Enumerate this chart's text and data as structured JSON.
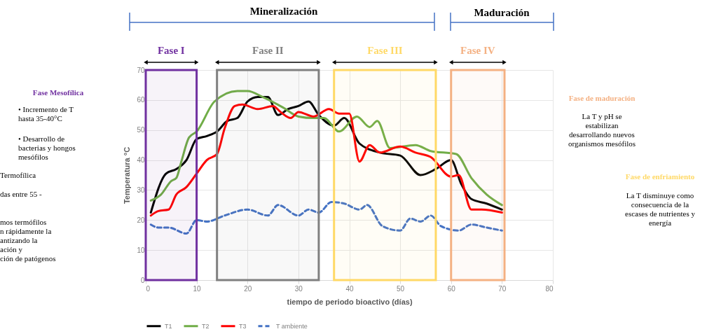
{
  "chart_data": {
    "type": "line",
    "xlabel": "tiempo de periodo bioactivo (días)",
    "ylabel": "Temperatura °C",
    "xlim": [
      0,
      80
    ],
    "xticks": [
      0,
      10,
      20,
      30,
      40,
      50,
      60,
      70,
      80
    ],
    "ylim": [
      0,
      70
    ],
    "yticks": [
      0,
      10,
      20,
      30,
      40,
      50,
      60,
      70
    ],
    "grid": true,
    "legend": "bottom",
    "marker": "none",
    "series": [
      {
        "name": "T1",
        "color": "#000000",
        "line_style": "solid",
        "x": [
          1,
          4,
          6,
          8,
          10,
          12,
          14,
          16,
          18,
          20,
          22,
          24,
          26,
          28,
          30,
          32,
          34,
          37,
          39,
          42,
          46,
          50,
          54,
          57,
          60,
          62,
          64,
          67,
          70
        ],
        "values": [
          22.5,
          35.5,
          37,
          40,
          47,
          48,
          49.5,
          53,
          54,
          59.5,
          61,
          61,
          55,
          57,
          58,
          59.5,
          55,
          51.5,
          54,
          45.5,
          42.5,
          41.5,
          35,
          37,
          40,
          32,
          27,
          25.5,
          23.5
        ]
      },
      {
        "name": "T2",
        "color": "#70ad47",
        "line_style": "solid",
        "x": [
          1,
          3,
          5,
          6,
          7,
          8.5,
          10,
          13.5,
          18,
          20,
          23,
          27,
          30,
          33,
          35,
          38,
          41.5,
          44,
          45.5,
          48,
          53,
          56,
          61,
          64,
          67,
          70
        ],
        "values": [
          26.5,
          28.5,
          33,
          34,
          39.5,
          47.5,
          49.5,
          59.5,
          63,
          63,
          61,
          57.5,
          54.5,
          54,
          54,
          49.5,
          54.5,
          51,
          53,
          44,
          45,
          43,
          42,
          34,
          28.5,
          25
        ]
      },
      {
        "name": "T3",
        "color": "#ff0000",
        "line_style": "solid",
        "x": [
          1,
          2.5,
          4.5,
          6,
          8,
          10,
          12,
          14,
          15.5,
          17.5,
          19,
          22,
          25,
          26.5,
          28.5,
          30,
          33,
          36,
          38,
          40,
          42,
          44,
          46,
          50,
          53,
          56,
          60,
          61.5,
          64,
          66,
          70
        ],
        "values": [
          21.5,
          23,
          23.5,
          28.5,
          31,
          35.5,
          40,
          42,
          50.5,
          58,
          58.5,
          57,
          58,
          56,
          54,
          56,
          54.5,
          57,
          55.5,
          55.5,
          39.5,
          45,
          42.5,
          44.5,
          42.5,
          41,
          34.5,
          35,
          23.5,
          23.5,
          22.5
        ]
      },
      {
        "name": "T ambiente",
        "color": "#4472c4",
        "line_style": "dashed",
        "x": [
          1,
          2.5,
          4.5,
          8,
          10,
          12,
          15.5,
          20,
          24,
          26,
          30,
          32,
          34,
          36.5,
          39,
          42,
          43.5,
          46.5,
          50,
          52,
          54,
          56,
          58,
          61.5,
          64,
          67,
          70
        ],
        "values": [
          18.5,
          17.5,
          17.5,
          15.5,
          20,
          19.5,
          21.5,
          23.5,
          21.5,
          25,
          21.5,
          23.5,
          22.5,
          26,
          25.5,
          23.5,
          25,
          18,
          16.5,
          20.5,
          19.5,
          21.5,
          18,
          16.5,
          18.5,
          17.5,
          16.5
        ]
      }
    ],
    "bands": [
      {
        "axis": "x",
        "from": 0,
        "to": 10,
        "label": "Fase I",
        "color": "#7030a0"
      },
      {
        "axis": "x",
        "from": 14,
        "to": 34,
        "label": "Fase II",
        "color": "#808080"
      },
      {
        "axis": "x",
        "from": 37,
        "to": 57,
        "label": "Fase III",
        "color": "#ffd966"
      },
      {
        "axis": "x",
        "from": 60,
        "to": 70.5,
        "label": "Fase IV",
        "color": "#f4b183"
      }
    ],
    "annotations": [
      "Mineralización",
      "Maduración",
      "Fase Mesofílica",
      "•  Incremento de T\n    hasta 35-40°C",
      "•  Desarrollo de\n    bacterias y hongos\n    mesófilos",
      "Termofílica",
      "das entre 55 -",
      "mos termófilos\nn rápidamente la\nantizando la\nación y\nción de patógenos",
      "Fase de maduración",
      "La T y pH se\nestabilizan\ndesarrollando nuevos\norganismos mesófilos",
      "Fase de enfriamiento",
      "La T disminuye como\nconsecuencia de la\nescases de nutrientes y\nenergía"
    ]
  }
}
